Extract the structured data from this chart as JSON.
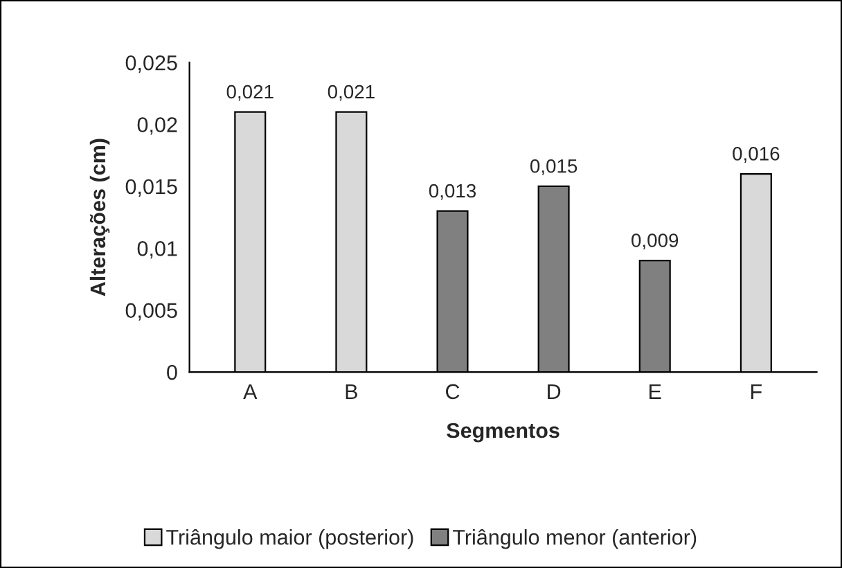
{
  "chart_data": {
    "type": "bar",
    "xlabel": "Segmentos",
    "ylabel": "Alterações (cm)",
    "categories": [
      "A",
      "B",
      "C",
      "D",
      "E",
      "F"
    ],
    "series": [
      {
        "name": "Triângulo maior (posterior)",
        "color": "#d9d9d9",
        "values": [
          0.021,
          0.021,
          null,
          null,
          null,
          0.016
        ],
        "value_labels": [
          "0,021",
          "0,021",
          null,
          null,
          null,
          "0,016"
        ]
      },
      {
        "name": "Triângulo menor (anterior)",
        "color": "#808080",
        "values": [
          null,
          null,
          0.013,
          0.015,
          0.009,
          null
        ],
        "value_labels": [
          null,
          null,
          "0,013",
          "0,015",
          "0,009",
          null
        ]
      }
    ],
    "ylim": [
      0,
      0.025
    ],
    "yticks": [
      {
        "value": 0,
        "label": "0"
      },
      {
        "value": 0.005,
        "label": "0,005"
      },
      {
        "value": 0.01,
        "label": "0,01"
      },
      {
        "value": 0.015,
        "label": "0,015"
      },
      {
        "value": 0.02,
        "label": "0,02"
      },
      {
        "value": 0.025,
        "label": "0,025"
      }
    ],
    "grid": false,
    "legend": "bottom"
  }
}
